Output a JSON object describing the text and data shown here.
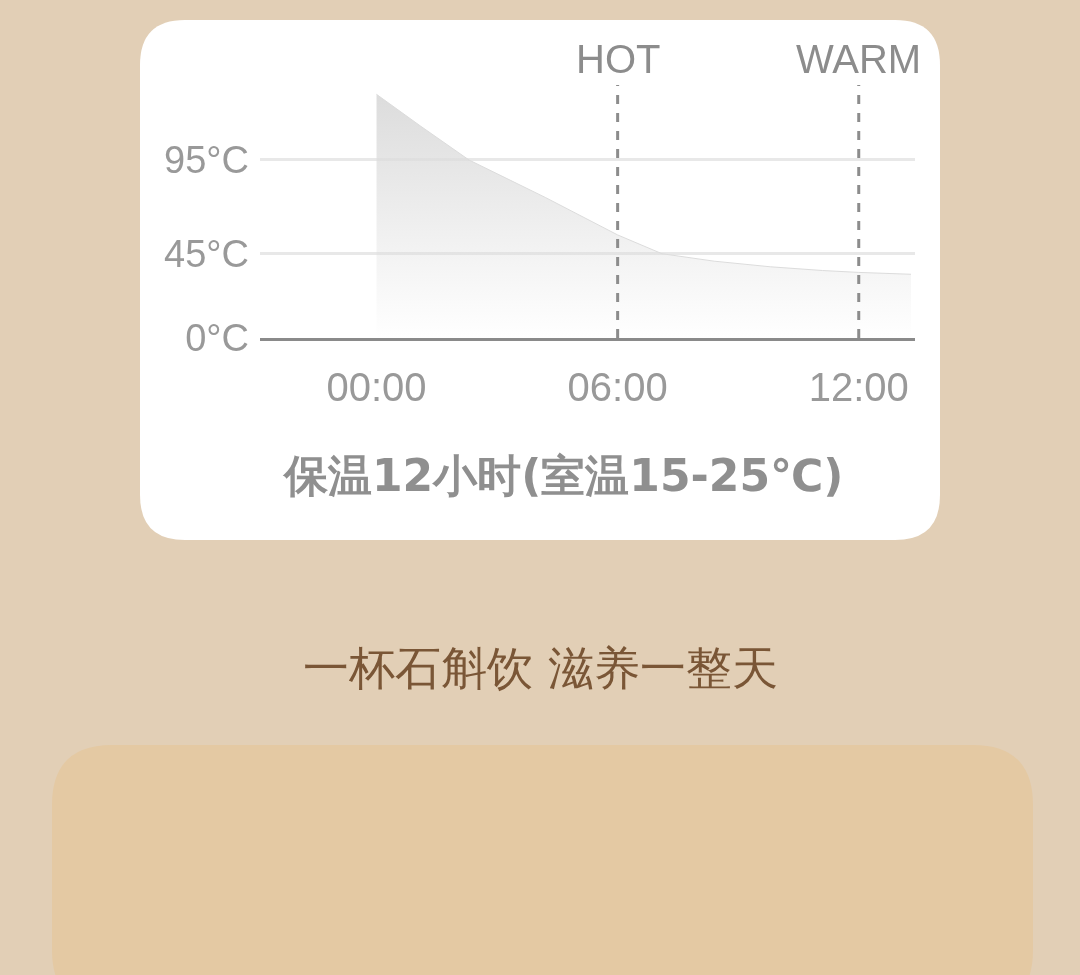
{
  "chart_data": {
    "type": "area",
    "x": [
      0,
      1.1,
      2.3,
      4.2,
      6,
      7.1,
      8.4,
      9.8,
      11.1,
      12,
      13.3
    ],
    "series": [
      {
        "color": "#dcdcdc",
        "values": [
          130,
          113,
          95,
          75,
          55,
          45,
          41,
          38,
          36,
          35,
          34
        ]
      }
    ],
    "xlim": [
      -2.9,
      13.4
    ],
    "xticks": [
      {
        "value": 0,
        "label": "00:00"
      },
      {
        "value": 6,
        "label": "06:00"
      },
      {
        "value": 12,
        "label": "12:00"
      }
    ],
    "ylim": [
      0,
      135
    ],
    "yticks": [
      {
        "value": 0,
        "label": "0°C"
      },
      {
        "value": 45,
        "label": "45°C"
      },
      {
        "value": 95,
        "label": "95°C"
      }
    ],
    "grid": "y",
    "ref_lines": [
      {
        "axis": "x",
        "value": 6,
        "label": "HOT",
        "color": "#8c8c8c",
        "line_style": "dashed"
      },
      {
        "axis": "x",
        "value": 12,
        "label": "WARM",
        "color": "#8c8c8c",
        "line_style": "dashed"
      }
    ],
    "annotations": [
      "保温12小时(室温15-25℃)",
      "一杯石斛饮 滋养一整天"
    ]
  }
}
